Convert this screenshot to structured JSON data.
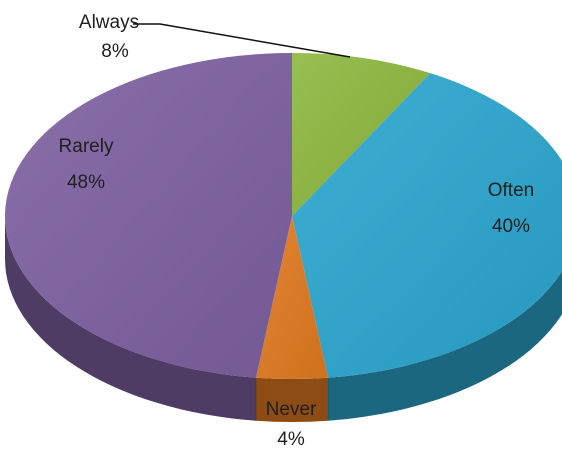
{
  "chart_data": {
    "type": "pie",
    "title": "",
    "slices": [
      {
        "name": "Always",
        "value": 8,
        "label": "8%",
        "color": "#8db83e"
      },
      {
        "name": "Often",
        "value": 40,
        "label": "40%",
        "color": "#2ba6cf"
      },
      {
        "name": "Never",
        "value": 4,
        "label": "4%",
        "color": "#e17a1f"
      },
      {
        "name": "Rarely",
        "value": 48,
        "label": "48%",
        "color": "#7e61a1"
      }
    ],
    "legend": "none",
    "style": "3d"
  }
}
